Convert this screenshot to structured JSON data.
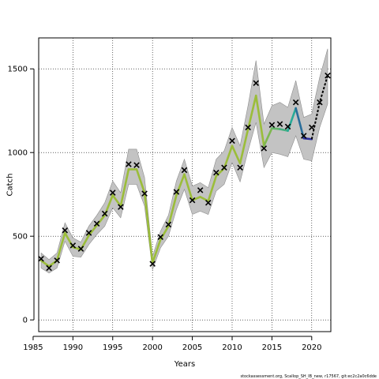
{
  "chart_data": {
    "type": "line",
    "title": "",
    "xlabel": "Years",
    "ylabel": "Catch",
    "xlim": [
      1985.7,
      2022.4
    ],
    "ylim": [
      -70,
      1685
    ],
    "x_ticks": [
      1985,
      1990,
      1995,
      2000,
      2005,
      2010,
      2015,
      2020
    ],
    "y_ticks": [
      0,
      500,
      1000,
      1500
    ],
    "grid": true,
    "grid_style": "dotted",
    "legend": "none",
    "colors": {
      "band": "#c3c3c3",
      "band_edge": "#8c8c8c",
      "observed_marker": "#000000",
      "projection": "#000000",
      "fit_start": "#9bbd3a",
      "fit_mid": "#27aa98",
      "fit_end": "#2b2f9d"
    },
    "observed": {
      "marker": "x",
      "x": [
        1986,
        1987,
        1988,
        1989,
        1990,
        1991,
        1992,
        1993,
        1994,
        1995,
        1996,
        1997,
        1998,
        1999,
        2000,
        2001,
        2002,
        2003,
        2004,
        2005,
        2006,
        2007,
        2008,
        2009,
        2010,
        2011,
        2012,
        2013,
        2014,
        2015,
        2016,
        2017,
        2018,
        2019,
        2020,
        2021,
        2022
      ],
      "y": [
        365,
        310,
        355,
        535,
        445,
        425,
        520,
        575,
        635,
        760,
        675,
        930,
        925,
        755,
        335,
        495,
        570,
        765,
        895,
        715,
        775,
        700,
        880,
        910,
        1070,
        910,
        1150,
        1415,
        1025,
        1165,
        1170,
        1155,
        1300,
        1100,
        1150,
        1300,
        1460
      ]
    },
    "fitted": {
      "x": [
        1986,
        1987,
        1988,
        1989,
        1990,
        1991,
        1992,
        1993,
        1994,
        1995,
        1996,
        1997,
        1998,
        1999,
        2000,
        2001,
        2002,
        2003,
        2004,
        2005,
        2006,
        2007,
        2008,
        2009,
        2010,
        2011,
        2012,
        2013,
        2014,
        2015,
        2016,
        2017,
        2018,
        2019,
        2020
      ],
      "y": [
        355,
        320,
        355,
        520,
        435,
        420,
        505,
        565,
        625,
        745,
        680,
        900,
        900,
        760,
        340,
        480,
        560,
        745,
        870,
        715,
        735,
        710,
        860,
        905,
        1040,
        935,
        1140,
        1340,
        1040,
        1145,
        1140,
        1130,
        1265,
        1085,
        1080
      ]
    },
    "band": {
      "x": [
        1986,
        1987,
        1988,
        1989,
        1990,
        1991,
        1992,
        1993,
        1994,
        1995,
        1996,
        1997,
        1998,
        1999,
        2000,
        2001,
        2002,
        2003,
        2004,
        2005,
        2006,
        2007,
        2008,
        2009,
        2010,
        2011,
        2012,
        2013,
        2014,
        2015,
        2016,
        2017,
        2018,
        2019,
        2020,
        2021,
        2022
      ],
      "lower": [
        310,
        280,
        310,
        470,
        380,
        375,
        450,
        510,
        560,
        670,
        610,
        810,
        810,
        680,
        300,
        430,
        500,
        660,
        780,
        630,
        650,
        630,
        770,
        810,
        940,
        825,
        1010,
        1180,
        910,
        1000,
        990,
        975,
        1100,
        960,
        950,
        1150,
        1290
      ],
      "upper": [
        400,
        360,
        400,
        580,
        490,
        465,
        560,
        625,
        700,
        830,
        760,
        1020,
        1020,
        850,
        380,
        530,
        625,
        830,
        960,
        800,
        820,
        790,
        960,
        1010,
        1150,
        1040,
        1280,
        1550,
        1170,
        1280,
        1300,
        1270,
        1430,
        1210,
        1230,
        1450,
        1620
      ]
    },
    "projection": {
      "x": [
        2020,
        2021,
        2022
      ],
      "y": [
        1080,
        1300,
        1460
      ]
    }
  },
  "footer": {
    "text": "stockassessment.org, Scallop_SH_IB_new, r17567, git:ec2c2a0c6dde"
  }
}
